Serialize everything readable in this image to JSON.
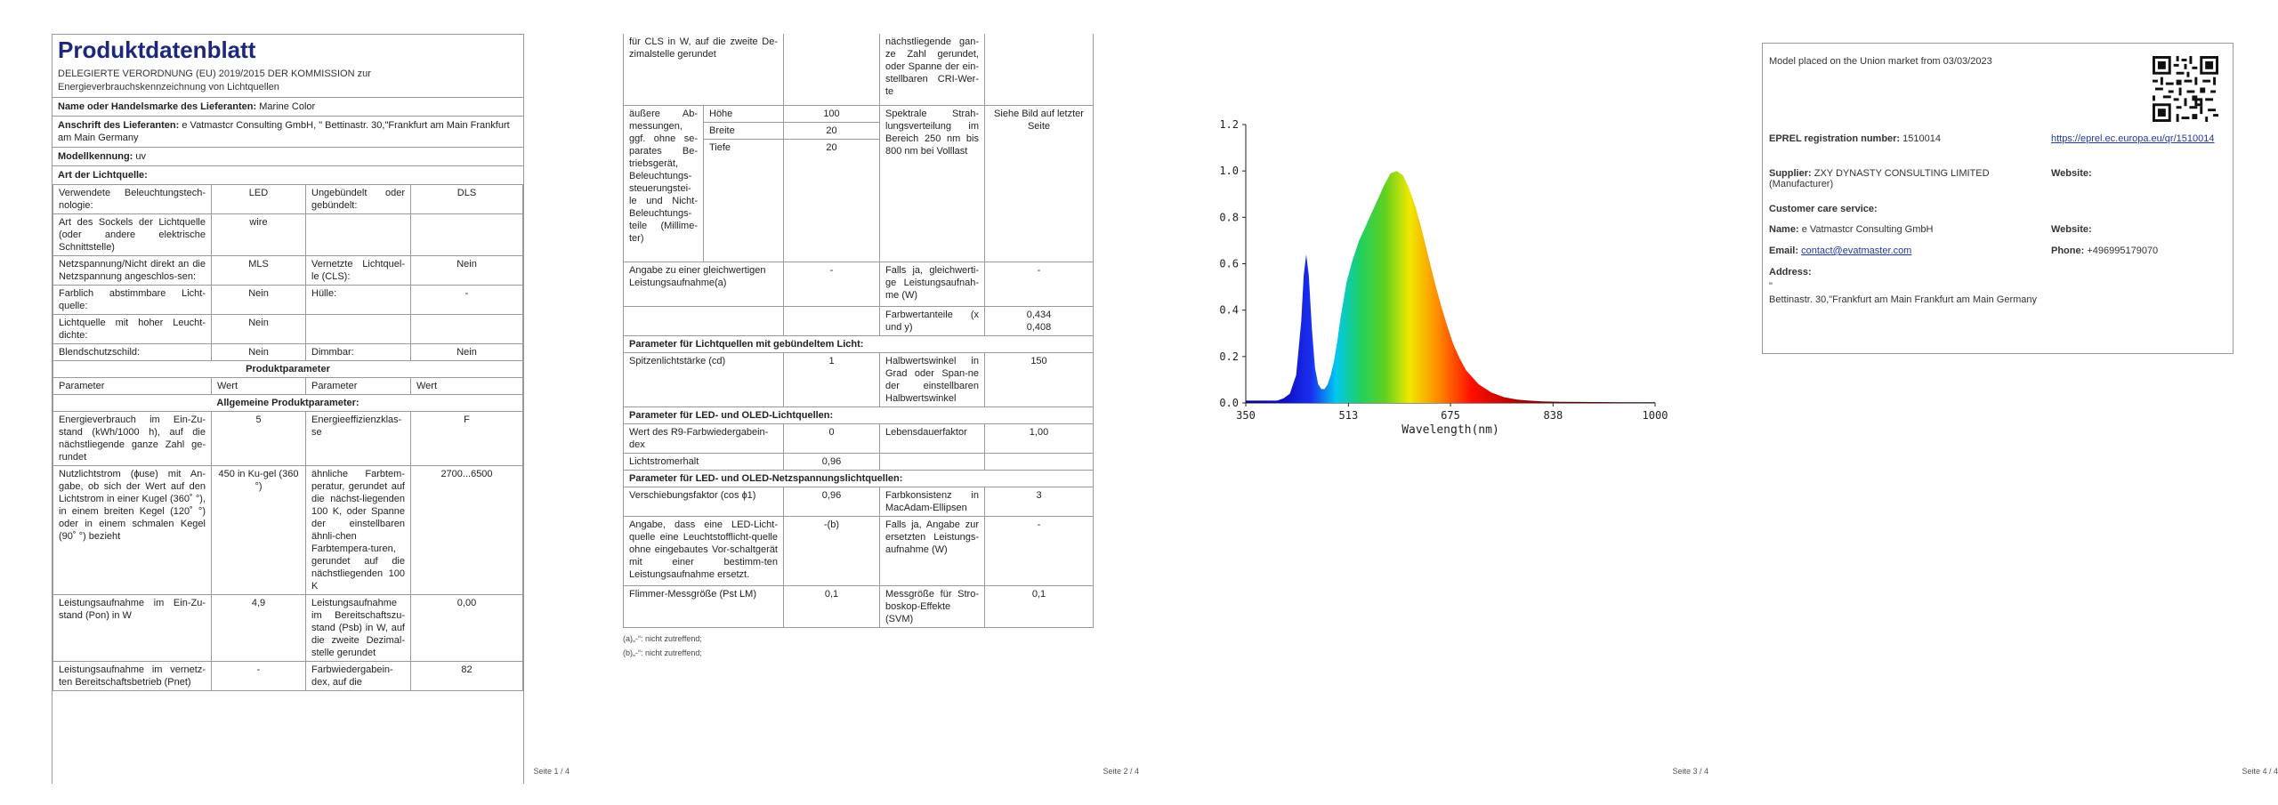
{
  "page1": {
    "title": "Produktdatenblatt",
    "subtitle": "DELEGIERTE VERORDNUNG (EU) 2019/2015 DER KOMMISSION zur Energieverbrauchskennzeichnung von Lichtquellen",
    "supplier_label": "Name oder Handelsmarke des Lieferanten:",
    "supplier_value": "Marine Color",
    "address_label": "Anschrift des Lieferanten:",
    "address_value": "e Vatmastcr Consulting GmbH, \" Bettinastr. 30,\"Frankfurt am Main Frankfurt am Main Germany",
    "model_label": "Modellkennung:",
    "model_value": "uv",
    "type_label": "Art der Lichtquelle:",
    "rows1": [
      [
        "Verwendete Beleuchtungstech-nologie:",
        "LED",
        "Ungebündelt oder gebündelt:",
        "DLS"
      ],
      [
        "Art des Sockels der Lichtquelle (oder andere elektrische Schnittstelle)",
        "wire",
        "",
        ""
      ],
      [
        "Netzspannung/Nicht direkt an die Netzspannung angeschlos-sen:",
        "MLS",
        "Vernetzte Lichtquel-le (CLS):",
        "Nein"
      ],
      [
        "Farblich abstimmbare Licht-quelle:",
        "Nein",
        "Hülle:",
        "-"
      ],
      [
        "Lichtquelle mit hoher Leucht-dichte:",
        "Nein",
        "",
        ""
      ],
      [
        "Blendschutzschild:",
        "Nein",
        "Dimmbar:",
        "Nein"
      ]
    ],
    "produktparameter": "Produktparameter",
    "header": [
      "Parameter",
      "Wert",
      "Parameter",
      "Wert"
    ],
    "allgemeine": "Allgemeine Produktparameter:",
    "rows2": [
      [
        "Energieverbrauch im Ein-Zu-stand (kWh/1000 h), auf die nächstliegende ganze Zahl ge-rundet",
        "5",
        "Energieeffizienzklas-se",
        "F"
      ],
      [
        "Nutzlichtstrom (ɸuse) mit An-gabe, ob sich der Wert auf den Lichtstrom in einer Kugel (360˚ °), in einem breiten Kegel (120˚ °) oder in einem schmalen Kegel (90˚ °) bezieht",
        "450 in Ku-gel (360 °)",
        "ähnliche Farbtem-peratur, gerundet auf die nächst-liegenden 100 K, oder Spanne der einstellbaren ähnli-chen Farbtempera-turen, gerundet auf die nächstliegenden 100 K",
        "2700...6500"
      ],
      [
        "Leistungsaufnahme im Ein-Zu-stand (Pon) in W",
        "4,9",
        "Leistungsaufnahme im Bereitschaftszu-stand (Psb) in W, auf die zweite Dezimal-stelle gerundet",
        "0,00"
      ],
      [
        "Leistungsaufnahme im vernetz-ten Bereitschaftsbetrieb (Pnet)",
        "-",
        "Farbwiedergabein-dex, auf die",
        "82"
      ]
    ],
    "page_no": "Seite 1 / 4"
  },
  "page2": {
    "top_row": [
      "für CLS in W, auf die zweite De-zimalstelle gerundet",
      "",
      "nächstliegende gan-ze Zahl gerundet, oder Spanne der ein-stellbaren CRI-Wer-te",
      ""
    ],
    "dims_label": "äußere Ab-messungen, ggf. ohne se-parates Be-triebsgerät, Beleuchtungs-steuerungstei-le und Nicht-Beleuchtungs-teile (Millime-ter)",
    "dims": [
      [
        "Höhe",
        "100"
      ],
      [
        "Breite",
        "20"
      ],
      [
        "Tiefe",
        "20"
      ]
    ],
    "spectral_label": "Spektrale Strah-lungsverteilung im Bereich 250 nm bis 800 nm bei Volllast",
    "spectral_value": "Siehe Bild auf letzter Seite",
    "equiv_label": "Angabe zu einer gleichwertigen Leistungsaufnahme(a)",
    "equiv_value": "-",
    "equiv_p_label": "Falls ja, gleichwerti-ge Leistungsaufnah-me (W)",
    "equiv_p_value": "-",
    "chroma_label": "Farbwertanteile (x und y)",
    "chroma_value1": "0,434",
    "chroma_value2": "0,408",
    "sec_directional": "Parameter für Lichtquellen mit gebündeltem Licht:",
    "peak_label": "Spitzenlichtstärke (cd)",
    "peak_value": "1",
    "beam_label": "Halbwertswinkel in Grad oder Span-ne der einstellbaren Halbwertswinkel",
    "beam_value": "150",
    "sec_led": "Parameter für LED- und OLED-Lichtquellen:",
    "r9_label": "Wert des R9-Farbwiedergabein-dex",
    "r9_value": "0",
    "surv_label": "Lebensdauerfaktor",
    "surv_value": "1,00",
    "lumen_label": "Lichtstromerhalt",
    "lumen_value": "0,96",
    "sec_mains": "Parameter für LED- und OLED-Netzspannungslichtquellen:",
    "disp_label": "Verschiebungsfaktor (cos ɸ1)",
    "disp_value": "0,96",
    "cons_label": "Farbkonsistenz in MacAdam-Ellipsen",
    "cons_value": "3",
    "replace_label": "Angabe, dass eine LED-Licht-quelle eine Leuchtstofflicht-quelle ohne eingebautes Vor-schaltgerät mit einer bestimm-ten Leistungsaufnahme ersetzt.",
    "replace_value": "-(b)",
    "replace_p_label": "Falls ja, Angabe zur ersetzten Leistungs-aufnahme (W)",
    "replace_p_value": "-",
    "flicker_label": "Flimmer-Messgröße (Pst LM)",
    "flicker_value": "0,1",
    "strobo_label": "Messgröße für Stro-boskop-Effekte (SVM)",
    "strobo_value": "0,1",
    "foot_a": "(a)„-“: nicht zutreffend;",
    "foot_b": "(b)„-“: nicht zutreffend;",
    "page_no": "Seite 2 / 4"
  },
  "chart_data": {
    "type": "area",
    "title": "",
    "xlabel": "Wavelength(nm)",
    "ylabel": "",
    "xlim": [
      350,
      1000
    ],
    "ylim": [
      0,
      1.2
    ],
    "x_ticks": [
      "350",
      "513",
      "675",
      "838",
      "1000"
    ],
    "y_ticks": [
      "0.0",
      "0.2",
      "0.4",
      "0.6",
      "0.8",
      "1.0",
      "1.2"
    ],
    "grid": false,
    "legend": "none",
    "series": [
      {
        "x": [
          350,
          380,
          400,
          410,
          420,
          430,
          438,
          442,
          446,
          450,
          455,
          460,
          465,
          470,
          475,
          480,
          485,
          490,
          495,
          500,
          510,
          520,
          530,
          540,
          550,
          560,
          570,
          580,
          590,
          600,
          610,
          620,
          630,
          640,
          650,
          660,
          670,
          680,
          690,
          700,
          720,
          740,
          760,
          780,
          800,
          820,
          850,
          900,
          950,
          1000
        ],
        "values": [
          0.01,
          0.01,
          0.01,
          0.02,
          0.04,
          0.12,
          0.35,
          0.55,
          0.64,
          0.55,
          0.32,
          0.15,
          0.08,
          0.06,
          0.06,
          0.08,
          0.12,
          0.18,
          0.26,
          0.36,
          0.52,
          0.62,
          0.7,
          0.76,
          0.82,
          0.88,
          0.94,
          0.99,
          1.0,
          0.98,
          0.92,
          0.84,
          0.74,
          0.63,
          0.52,
          0.42,
          0.33,
          0.25,
          0.19,
          0.14,
          0.08,
          0.045,
          0.025,
          0.015,
          0.01,
          0.007,
          0.005,
          0.004,
          0.003,
          0.003
        ]
      }
    ],
    "page_no": "Seite 3 / 4"
  },
  "page4": {
    "placed": "Model placed on the Union market from 03/03/2023",
    "eprel_label": "EPREL registration number:",
    "eprel_value": "1510014",
    "eprel_link": "https://eprel.ec.europa.eu/qr/1510014",
    "supplier_label": "Supplier:",
    "supplier_value": "ZXY DYNASTY CONSULTING LIMITED (Manufacturer)",
    "website_label": "Website:",
    "care_label": "Customer care service:",
    "name_label": "Name:",
    "name_value": "e Vatmastcr Consulting GmbH",
    "website2_label": "Website:",
    "email_label": "Email:",
    "email_value": "contact@evatmaster.com",
    "phone_label": "Phone:",
    "phone_value": "+496995179070",
    "address_label": "Address:",
    "address_q": "\"",
    "address_value": "Bettinastr. 30,\"Frankfurt am Main Frankfurt am Main Germany",
    "page_no": "Seite 4 / 4"
  }
}
